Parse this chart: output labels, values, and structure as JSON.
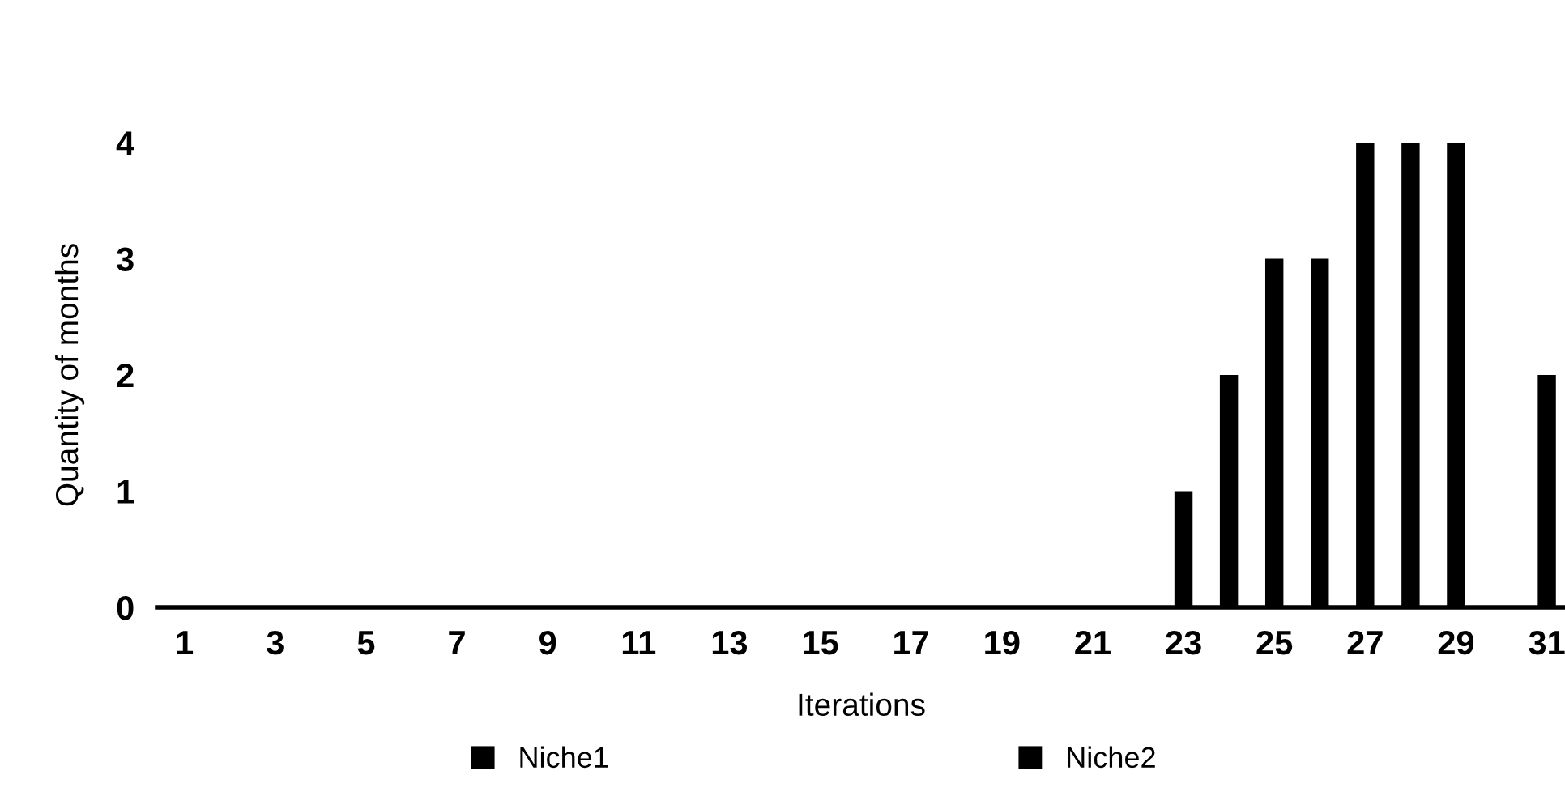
{
  "chart_data": {
    "type": "bar",
    "xlabel": "Iterations",
    "ylabel": "Quantity of months",
    "categories": [
      "1",
      null,
      "3",
      null,
      "5",
      null,
      "7",
      null,
      "9",
      null,
      "11",
      null,
      "13",
      null,
      "15",
      null,
      "17",
      null,
      "19",
      null,
      "21",
      null,
      "23",
      null,
      "25",
      null,
      "27",
      null,
      "29",
      null,
      "31"
    ],
    "series": [
      {
        "name": "Niche1",
        "color": "#000000",
        "values": [
          0,
          0,
          0,
          0,
          0,
          0,
          0,
          0,
          0,
          0,
          0,
          0,
          0,
          0,
          0,
          0,
          0,
          0,
          0,
          0,
          0,
          0,
          0,
          0,
          0,
          0,
          0,
          0,
          0,
          0,
          0
        ]
      },
      {
        "name": "Niche2",
        "color": "#000000",
        "values": [
          0,
          0,
          0,
          0,
          0,
          0,
          0,
          0,
          0,
          0,
          0,
          0,
          0,
          0,
          0,
          0,
          0,
          0,
          0,
          0,
          0,
          0,
          1,
          2,
          3,
          3,
          4,
          4,
          4,
          0,
          2
        ]
      }
    ],
    "ylim": [
      0,
      4
    ],
    "yticks": [
      0,
      1,
      2,
      3,
      4
    ],
    "grid": false,
    "legend": "bottom"
  }
}
